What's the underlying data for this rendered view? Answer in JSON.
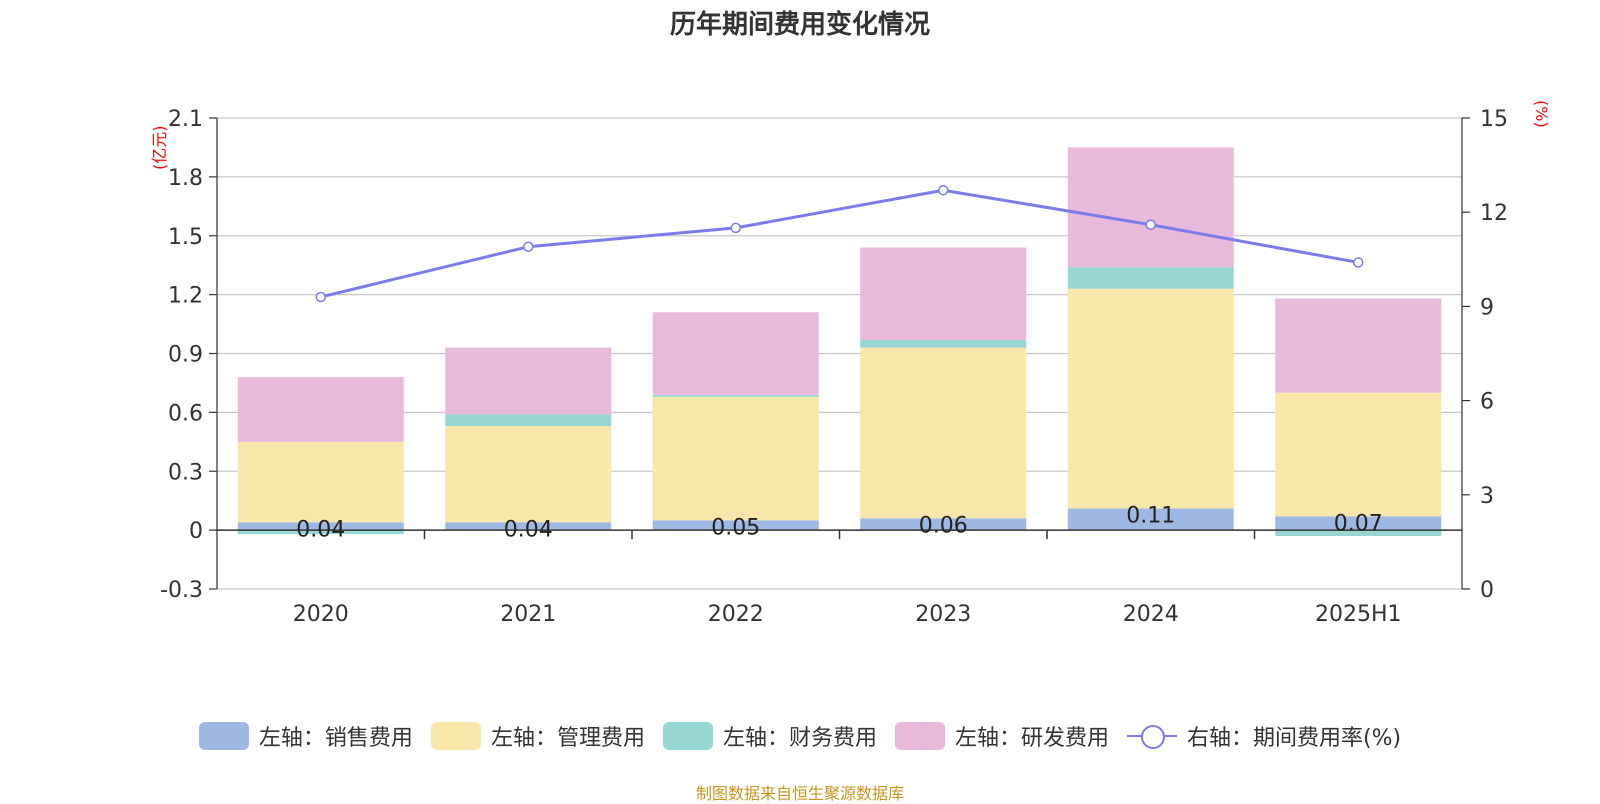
{
  "chart_data": {
    "type": "bar",
    "title": "历年期间费用变化情况",
    "categories": [
      "2020",
      "2021",
      "2022",
      "2023",
      "2024",
      "2025H1"
    ],
    "series": [
      {
        "name": "左轴：销售费用",
        "axis": "left",
        "kind": "bar",
        "color": "#9db8e2",
        "values": [
          0.04,
          0.04,
          0.05,
          0.06,
          0.11,
          0.07
        ],
        "labels": [
          "0.04",
          "0.04",
          "0.05",
          "0.06",
          "0.11",
          "0.07"
        ]
      },
      {
        "name": "左轴：管理费用",
        "axis": "left",
        "kind": "bar",
        "color": "#f8e7a8",
        "values": [
          0.41,
          0.49,
          0.63,
          0.87,
          1.12,
          0.63
        ]
      },
      {
        "name": "左轴：财务费用",
        "axis": "left",
        "kind": "bar",
        "color": "#98d6d4",
        "values": [
          -0.02,
          0.06,
          0.01,
          0.04,
          0.11,
          -0.03
        ]
      },
      {
        "name": "左轴：研发费用",
        "axis": "left",
        "kind": "bar",
        "color": "#e8b9da",
        "values": [
          0.33,
          0.34,
          0.42,
          0.47,
          0.61,
          0.48
        ]
      },
      {
        "name": "右轴：期间费用率(%)",
        "axis": "right",
        "kind": "line",
        "color": "#7b7bea",
        "values": [
          9.3,
          10.9,
          11.5,
          12.7,
          11.6,
          10.4
        ]
      }
    ],
    "left_axis": {
      "unit": "(亿元)",
      "ylim": [
        -0.3,
        2.1
      ],
      "ticks": [
        "2.1",
        "1.8",
        "1.5",
        "1.2",
        "0.9",
        "0.6",
        "0.3",
        "0",
        "-0.3"
      ]
    },
    "right_axis": {
      "unit": "(%)",
      "ylim": [
        0,
        15
      ],
      "ticks": [
        "15",
        "12",
        "9",
        "6",
        "3",
        "0"
      ]
    },
    "grid": true,
    "legend_position": "bottom"
  },
  "source": "制图数据来自恒生聚源数据库"
}
